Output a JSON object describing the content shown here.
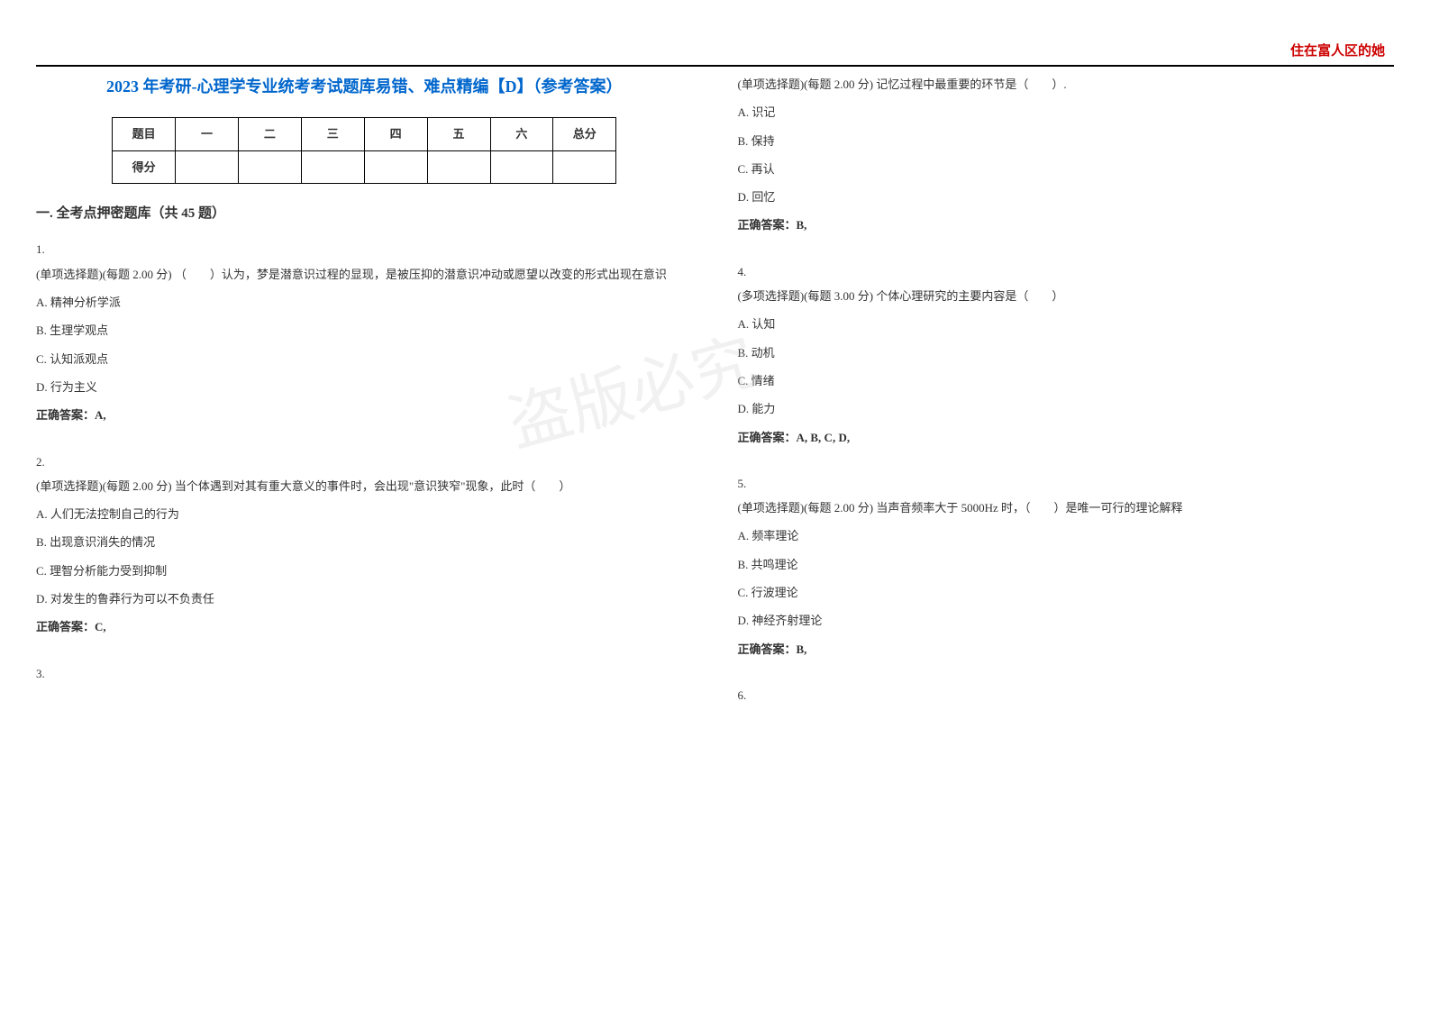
{
  "header_label": "住在富人区的她",
  "title": "2023 年考研-心理学专业统考考试题库易错、难点精编【D】（参考答案）",
  "score_table": {
    "headers": [
      "题目",
      "一",
      "二",
      "三",
      "四",
      "五",
      "六",
      "总分"
    ],
    "row_label": "得分"
  },
  "section_heading": "一. 全考点押密题库（共 45 题）",
  "watermark": "盗版必究",
  "left_questions": [
    {
      "num": "1.",
      "text": "(单项选择题)(每题 2.00 分) （　　）认为，梦是潜意识过程的显现，是被压抑的潜意识冲动或愿望以改变的形式出现在意识",
      "options": [
        "A.  精神分析学派",
        "B.  生理学观点",
        "C.  认知派观点",
        "D.  行为主义"
      ],
      "answer": "正确答案：A,"
    },
    {
      "num": "2.",
      "text": "(单项选择题)(每题 2.00 分) 当个体遇到对其有重大意义的事件时，会出现\"意识狭窄\"现象，此时（　　）",
      "options": [
        "A.  人们无法控制自己的行为",
        "B.  出现意识消失的情况",
        "C.  理智分析能力受到抑制",
        "D.  对发生的鲁莽行为可以不负责任"
      ],
      "answer": "正确答案：C,"
    },
    {
      "num": "3.",
      "text": "",
      "options": [],
      "answer": ""
    }
  ],
  "right_questions": [
    {
      "num": "",
      "text": "(单项选择题)(每题 2.00 分) 记忆过程中最重要的环节是（　　）.",
      "options": [
        "A.  识记",
        "B.  保持",
        "C.  再认",
        "D.  回忆"
      ],
      "answer": "正确答案：B,"
    },
    {
      "num": "4.",
      "text": "(多项选择题)(每题 3.00 分) 个体心理研究的主要内容是（　　）",
      "options": [
        "A.  认知",
        "B.  动机",
        "C.  情绪",
        "D.  能力"
      ],
      "answer": "正确答案：A, B, C, D,"
    },
    {
      "num": "5.",
      "text": "(单项选择题)(每题 2.00 分) 当声音频率大于 5000Hz 时，（　　）是唯一可行的理论解释",
      "options": [
        "A.  频率理论",
        "B.  共鸣理论",
        "C.  行波理论",
        "D.  神经齐射理论"
      ],
      "answer": "正确答案：B,"
    },
    {
      "num": "6.",
      "text": "",
      "options": [],
      "answer": ""
    }
  ]
}
